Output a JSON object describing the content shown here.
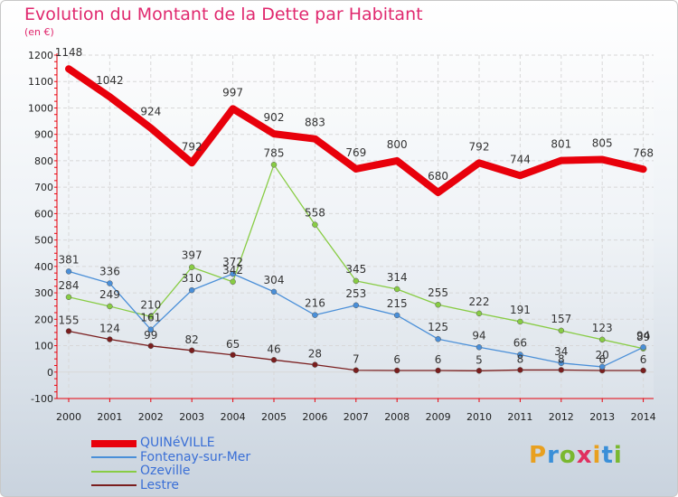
{
  "header": {
    "title": "Evolution du Montant de la Dette par Habitant",
    "unit": "(en €)"
  },
  "logo": {
    "text": "Proxiti"
  },
  "chart_data": {
    "type": "line",
    "title": "Evolution du Montant de la Dette par Habitant",
    "ylabel": "(en €)",
    "xlabel": "",
    "x": [
      "2000",
      "2001",
      "2002",
      "2003",
      "2004",
      "2005",
      "2006",
      "2007",
      "2008",
      "2009",
      "2010",
      "2011",
      "2012",
      "2013",
      "2014"
    ],
    "ylim": [
      -100,
      1200
    ],
    "yticks": [
      "-100",
      "0",
      "100",
      "200",
      "300",
      "400",
      "500",
      "600",
      "700",
      "800",
      "900",
      "1000",
      "1100",
      "1200"
    ],
    "grid": true,
    "legend_position": "bottom-left",
    "series": [
      {
        "name": "QUINéVILLE",
        "color": "#e8000b",
        "values": [
          1148,
          1042,
          924,
          792,
          997,
          902,
          883,
          769,
          800,
          680,
          792,
          744,
          801,
          805,
          768
        ],
        "labels": [
          "1148",
          "1042",
          "924",
          "792",
          "997",
          "902",
          "883",
          "769",
          "800",
          "680",
          "792",
          "744",
          "801",
          "805",
          "768"
        ]
      },
      {
        "name": "Fontenay-sur-Mer",
        "color": "#4a8fd8",
        "values": [
          381,
          336,
          161,
          310,
          372,
          304,
          216,
          253,
          215,
          125,
          94,
          66,
          34,
          20,
          94
        ],
        "labels": [
          "381",
          "336",
          "161",
          "310",
          "372",
          "304",
          "216",
          "253",
          "215",
          "125",
          "94",
          "66",
          "34",
          "20",
          "94"
        ]
      },
      {
        "name": "Ozeville",
        "color": "#88cc44",
        "values": [
          284,
          249,
          210,
          397,
          342,
          785,
          558,
          345,
          314,
          255,
          222,
          191,
          157,
          123,
          89
        ],
        "labels": [
          "284",
          "249",
          "210",
          "397",
          "342",
          "785",
          "558",
          "345",
          "314",
          "255",
          "222",
          "191",
          "157",
          "123",
          "89"
        ]
      },
      {
        "name": "Lestre",
        "color": "#7a1e1e",
        "values": [
          155,
          124,
          99,
          82,
          65,
          46,
          28,
          7,
          6,
          6,
          5,
          8,
          8,
          6,
          6
        ],
        "labels": [
          "155",
          "124",
          "99",
          "82",
          "65",
          "46",
          "28",
          "7",
          "6",
          "6",
          "5",
          "8",
          "8",
          "6",
          "6"
        ]
      }
    ]
  }
}
